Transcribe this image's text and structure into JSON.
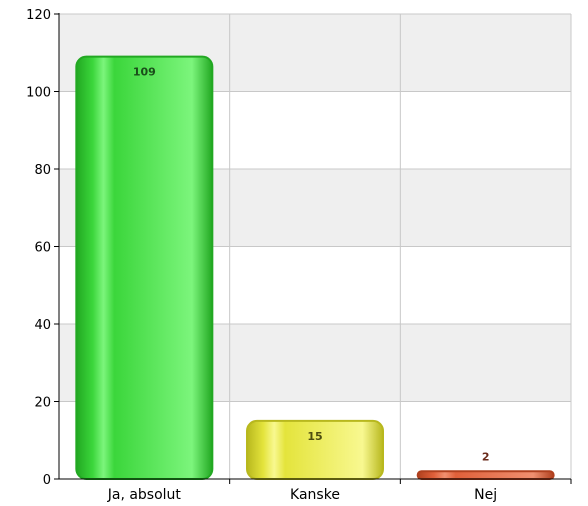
{
  "chart_data": {
    "type": "bar",
    "categories": [
      "Ja, absolut",
      "Kanske",
      "Nej"
    ],
    "values": [
      109,
      15,
      2
    ],
    "title": "",
    "xlabel": "",
    "ylabel": "",
    "ylim": [
      0,
      120
    ],
    "yticks": [
      0,
      20,
      40,
      60,
      80,
      100,
      120
    ],
    "grid": true,
    "legend": "none",
    "colors": {
      "bars": [
        "#3bd63b",
        "#e4e43c",
        "#e0603a"
      ],
      "bar_edges": [
        "#22a822",
        "#b8b81e",
        "#b0401e"
      ],
      "bar_highlights": [
        "#7cf57c",
        "#f8f890",
        "#f09070"
      ],
      "data_labels": [
        "#1a4d1a",
        "#4d4d10",
        "#6a2a1a"
      ],
      "band": "#efefef",
      "grid": "#c8c8c8",
      "axis": "#000000"
    }
  }
}
